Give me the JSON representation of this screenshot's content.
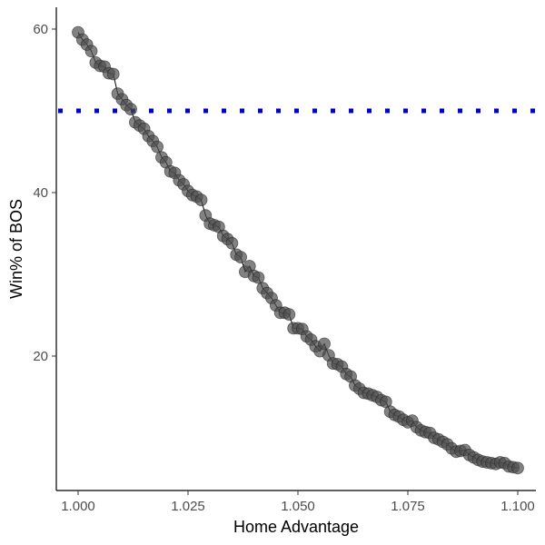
{
  "chart_data": {
    "type": "scatter",
    "title": "",
    "xlabel": "Home Advantage",
    "ylabel": "Win% of BOS",
    "xlim": [
      0.9965,
      1.1035
    ],
    "ylim": [
      3.3,
      62.6
    ],
    "x_ticks": [
      1.0,
      1.025,
      1.05,
      1.075,
      1.1
    ],
    "x_tick_labels": [
      "1.000",
      "1.025",
      "1.050",
      "1.075",
      "1.100"
    ],
    "y_ticks": [
      20,
      40,
      60
    ],
    "y_tick_labels": [
      "20",
      "40",
      "60"
    ],
    "grid": false,
    "legend": null,
    "reference_line": {
      "y": 50,
      "style": "dotted",
      "color": "#0000CD"
    },
    "point_color": "#4d4d4d",
    "point_opacity": 0.7,
    "line_color": "#000000",
    "series": [
      {
        "name": "Win% of BOS",
        "x": [
          1.0,
          1.001,
          1.002,
          1.003,
          1.004,
          1.005,
          1.006,
          1.007,
          1.008,
          1.009,
          1.01,
          1.011,
          1.012,
          1.013,
          1.014,
          1.015,
          1.016,
          1.017,
          1.018,
          1.019,
          1.02,
          1.021,
          1.022,
          1.023,
          1.024,
          1.025,
          1.026,
          1.027,
          1.028,
          1.029,
          1.03,
          1.031,
          1.032,
          1.033,
          1.034,
          1.035,
          1.036,
          1.037,
          1.038,
          1.039,
          1.04,
          1.041,
          1.042,
          1.043,
          1.044,
          1.045,
          1.046,
          1.047,
          1.048,
          1.049,
          1.05,
          1.051,
          1.052,
          1.053,
          1.054,
          1.055,
          1.056,
          1.057,
          1.058,
          1.059,
          1.06,
          1.061,
          1.062,
          1.063,
          1.064,
          1.065,
          1.066,
          1.067,
          1.068,
          1.069,
          1.07,
          1.071,
          1.072,
          1.073,
          1.074,
          1.075,
          1.076,
          1.077,
          1.078,
          1.079,
          1.08,
          1.081,
          1.082,
          1.083,
          1.084,
          1.085,
          1.086,
          1.087,
          1.088,
          1.089,
          1.09,
          1.091,
          1.092,
          1.093,
          1.094,
          1.095,
          1.096,
          1.097,
          1.098,
          1.099,
          1.1
        ],
        "y": [
          59.6,
          58.7,
          58.1,
          57.3,
          55.9,
          55.5,
          55.4,
          54.6,
          54.5,
          52.1,
          51.4,
          50.7,
          50.2,
          48.6,
          48.2,
          47.8,
          46.9,
          46.3,
          45.6,
          44.3,
          43.7,
          42.6,
          42.4,
          41.5,
          41.0,
          40.2,
          39.7,
          39.5,
          39.1,
          37.2,
          36.2,
          36.0,
          35.8,
          34.7,
          34.3,
          33.8,
          32.4,
          32.1,
          30.3,
          31.0,
          29.8,
          29.6,
          28.3,
          27.7,
          27.1,
          26.2,
          25.3,
          25.3,
          25.1,
          23.4,
          23.4,
          23.3,
          22.4,
          22.0,
          21.2,
          20.6,
          21.5,
          20.1,
          19.1,
          19.0,
          18.7,
          17.8,
          17.5,
          16.4,
          16.0,
          15.5,
          15.4,
          15.2,
          15.0,
          14.6,
          14.4,
          13.2,
          12.8,
          12.6,
          12.2,
          11.9,
          12.1,
          11.3,
          10.9,
          10.7,
          10.6,
          10.0,
          9.8,
          9.5,
          9.2,
          8.7,
          8.3,
          8.4,
          8.5,
          7.9,
          7.6,
          7.3,
          7.1,
          7.0,
          6.9,
          6.8,
          7.0,
          6.9,
          6.5,
          6.4,
          6.3
        ]
      }
    ]
  }
}
